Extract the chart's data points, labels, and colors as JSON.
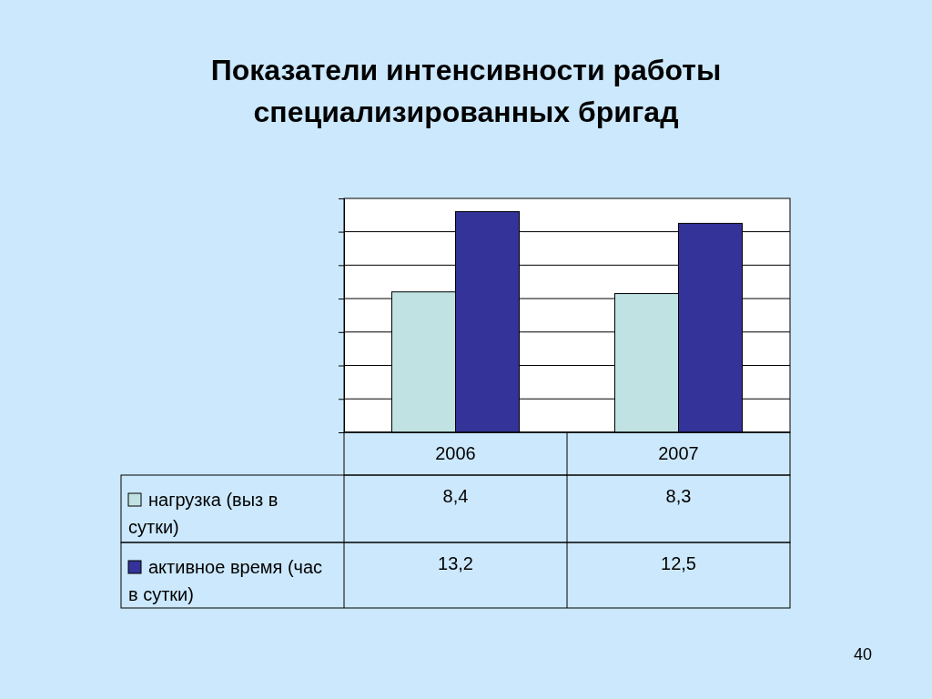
{
  "chart_data": {
    "type": "bar",
    "title": "Показатели интенсивности работы специализированных бригад",
    "categories": [
      "2006",
      "2007"
    ],
    "series": [
      {
        "name": "нагрузка (выз в сутки)",
        "color": "#c0e2e2",
        "values": [
          8.4,
          8.3
        ],
        "value_labels": [
          "8,4",
          "8,3"
        ]
      },
      {
        "name": "активное время (час в сутки)",
        "color": "#333399",
        "values": [
          13.2,
          12.5
        ],
        "value_labels": [
          "13,2",
          "12,5"
        ]
      }
    ],
    "tick_labels": "x",
    "grid": true,
    "legend": "bottom",
    "annotations": [
      "40"
    ]
  }
}
